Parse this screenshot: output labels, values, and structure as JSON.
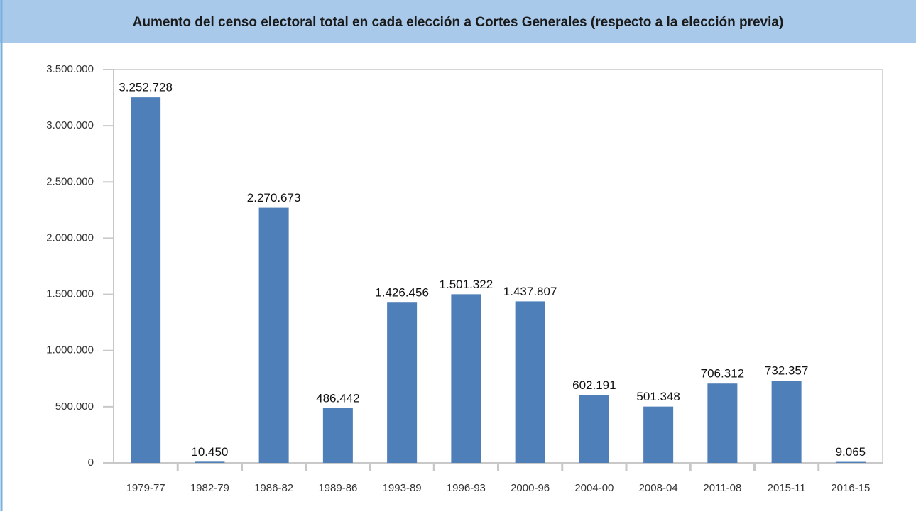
{
  "chart_data": {
    "type": "bar",
    "title": "Aumento del censo electoral total en cada elección a Cortes Generales (respecto a la elección previa)",
    "categories": [
      "1979-77",
      "1982-79",
      "1986-82",
      "1989-86",
      "1993-89",
      "1996-93",
      "2000-96",
      "2004-00",
      "2008-04",
      "2011-08",
      "2015-11",
      "2016-15"
    ],
    "values": [
      3252728,
      10450,
      2270673,
      486442,
      1426456,
      1501322,
      1437807,
      602191,
      501348,
      706312,
      732357,
      9065
    ],
    "value_labels": [
      "3.252.728",
      "10.450",
      "2.270.673",
      "486.442",
      "1.426.456",
      "1.501.322",
      "1.437.807",
      "602.191",
      "501.348",
      "706.312",
      "732.357",
      "9.065"
    ],
    "color": "#4f7fb8",
    "ylim": [
      0,
      3500000
    ],
    "yticks": [
      0,
      {
        "value": 500000,
        "label": "500.000"
      },
      {
        "value": 1000000,
        "label": "1.000.000"
      },
      {
        "value": 1500000,
        "label": "1.500.000"
      },
      {
        "value": 2000000,
        "label": "2.000.000"
      },
      {
        "value": 2500000,
        "label": "2.500.000"
      },
      {
        "value": 3000000,
        "label": "3.000.000"
      },
      {
        "value": 3500000,
        "label": "3.500.000"
      }
    ],
    "grid": false
  }
}
